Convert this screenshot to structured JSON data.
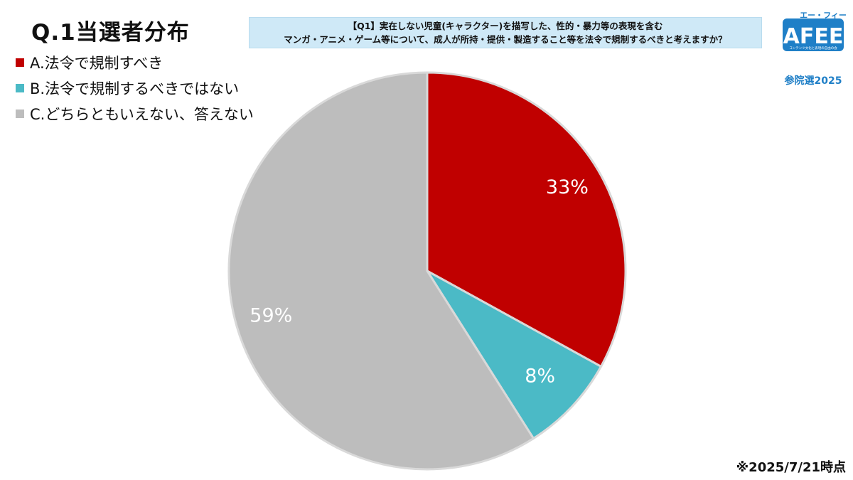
{
  "page": {
    "title": "Q.1当選者分布",
    "question_line1": "【Q1】実在しない児童(キャラクター)を描写した、性的・暴力等の表現を含む",
    "question_line2": "マンガ・アニメ・ゲーム等について、成人が所持・提供・製造すること等を法令で規制するべきと考えますか？",
    "logo_text": "AFEE",
    "logo_kana": "エー・フィー",
    "logo_small": "コンテンツ文化と表現の自由の会",
    "logo_subtitle": "参院選2025",
    "note": "※2025/7/21時点"
  },
  "chart_data": {
    "type": "pie",
    "categories": [
      "A.法令で規制すべき",
      "B.法令で規制するべきではない",
      "C.どちらともいえない、答えない"
    ],
    "values": [
      33,
      8,
      59
    ],
    "value_labels": [
      "33%",
      "8%",
      "59%"
    ],
    "colors": [
      "#c00000",
      "#4bbac6",
      "#bdbdbd"
    ],
    "start_angle_deg": 0,
    "direction": "clockwise",
    "legend_position": "top-left"
  }
}
